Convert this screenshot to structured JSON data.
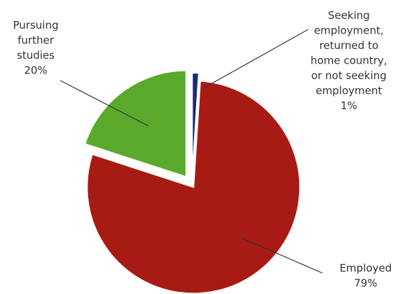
{
  "chart_data": {
    "type": "pie",
    "title": "",
    "legend": "none",
    "slices": [
      {
        "label": "Seeking employment, returned to home country, or not seeking employment",
        "label_lines": [
          "Seeking",
          "employment,",
          "returned to",
          "home country,",
          "or not seeking",
          "employment"
        ],
        "value": 1,
        "value_label": "1%",
        "color": "#1b2a7a"
      },
      {
        "label": "Employed",
        "label_lines": [
          "Employed"
        ],
        "value": 79,
        "value_label": "79%",
        "color": "#a81b14"
      },
      {
        "label": "Pursuing further studies",
        "label_lines": [
          "Pursuing",
          "further",
          "studies"
        ],
        "value": 20,
        "value_label": "20%",
        "color": "#5aa92c"
      }
    ]
  }
}
